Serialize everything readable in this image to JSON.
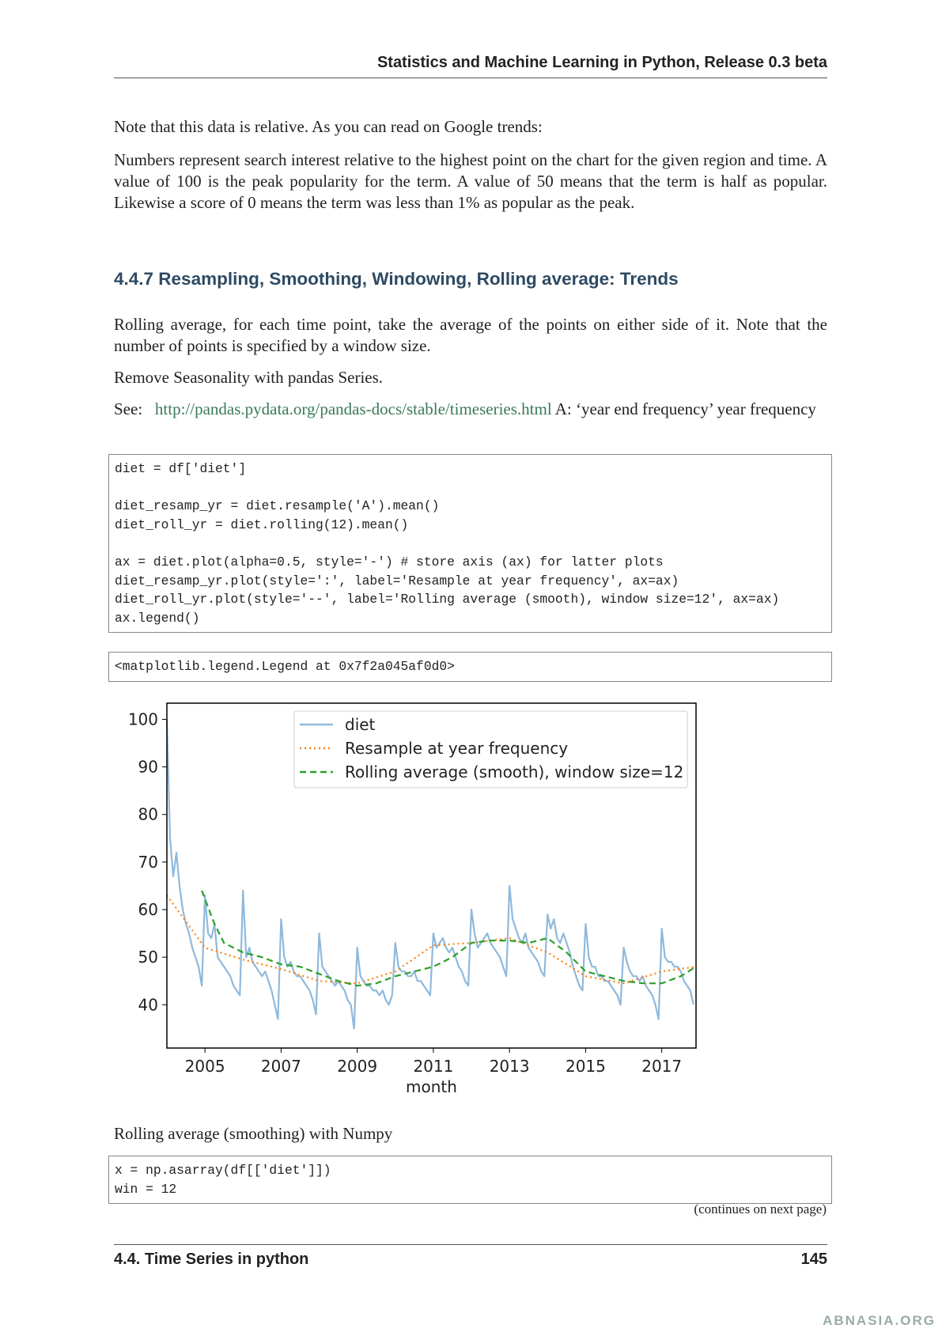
{
  "header": {
    "title": "Statistics and Machine Learning in Python, Release 0.3 beta"
  },
  "body": {
    "p1": "Note that this data is relative. As you can read on Google trends:",
    "quote": "Numbers represent search interest relative to the highest point on the chart for the given region and time. A value of 100 is the peak popularity for the term. A value of 50 means that the term is half as popular. Likewise a score of 0 means the term was less than 1% as popular as the peak.",
    "heading": "4.4.7  Resampling, Smoothing, Windowing, Rolling average: Trends",
    "p2": "Rolling average, for each time point, take the average of the points on either side of it. Note that the number of points is specified by a window size.",
    "p3": "Remove Seasonality with pandas Series.",
    "p4": {
      "before": "See:",
      "link": "http://pandas.pydata.org/pandas-docs/stable/timeseries.html",
      "after": "A: ‘year end frequency’ year frequency"
    },
    "code1": [
      [
        "diet = df['diet']"
      ],
      [
        "diet_resamp_yr = diet.resample('A').mean()",
        "diet_roll_yr = diet.rolling(12).mean()"
      ],
      [
        "ax = diet.plot(alpha=0.5, style='-') # store axis (ax) for latter plots",
        "diet_resamp_yr.plot(style=':', label='Resample at year frequency', ax=ax)",
        "diet_roll_yr.plot(style='--', label='Rolling average (smooth), window size=12', ax=ax)",
        "ax.legend()"
      ]
    ],
    "output": "<matplotlib.legend.Legend at 0x7f2a045af0d0>",
    "caption": "Rolling average (smoothing) with Numpy",
    "code2": [
      "x = np.asarray(df[['diet']])",
      "win = 12"
    ],
    "continues": "(continues on next page)"
  },
  "chart_data": {
    "type": "line",
    "xlabel": "month",
    "xlim": [
      2004.0,
      2017.9
    ],
    "xticks": [
      2005,
      2007,
      2009,
      2011,
      2013,
      2015,
      2017
    ],
    "ylim": [
      30.9,
      103.4
    ],
    "yticks": [
      40,
      50,
      60,
      70,
      80,
      90,
      100
    ],
    "legend": "upper right",
    "series": [
      {
        "name": "diet",
        "color": "#8fb9dc",
        "style": "solid",
        "x": [
          2004,
          2004.083,
          2004.167,
          2004.25,
          2004.333,
          2004.417,
          2004.5,
          2004.583,
          2004.667,
          2004.75,
          2004.833,
          2004.917,
          2005,
          2005.083,
          2005.167,
          2005.25,
          2005.333,
          2005.417,
          2005.5,
          2005.583,
          2005.667,
          2005.75,
          2005.833,
          2005.917,
          2006,
          2006.083,
          2006.167,
          2006.25,
          2006.333,
          2006.417,
          2006.5,
          2006.583,
          2006.667,
          2006.75,
          2006.833,
          2006.917,
          2007,
          2007.083,
          2007.167,
          2007.25,
          2007.333,
          2007.417,
          2007.5,
          2007.583,
          2007.667,
          2007.75,
          2007.833,
          2007.917,
          2008,
          2008.083,
          2008.167,
          2008.25,
          2008.333,
          2008.417,
          2008.5,
          2008.583,
          2008.667,
          2008.75,
          2008.833,
          2008.917,
          2009,
          2009.083,
          2009.167,
          2009.25,
          2009.333,
          2009.417,
          2009.5,
          2009.583,
          2009.667,
          2009.75,
          2009.833,
          2009.917,
          2010,
          2010.083,
          2010.167,
          2010.25,
          2010.333,
          2010.417,
          2010.5,
          2010.583,
          2010.667,
          2010.75,
          2010.833,
          2010.917,
          2011,
          2011.083,
          2011.167,
          2011.25,
          2011.333,
          2011.417,
          2011.5,
          2011.583,
          2011.667,
          2011.75,
          2011.833,
          2011.917,
          2012,
          2012.083,
          2012.167,
          2012.25,
          2012.333,
          2012.417,
          2012.5,
          2012.583,
          2012.667,
          2012.75,
          2012.833,
          2012.917,
          2013,
          2013.083,
          2013.167,
          2013.25,
          2013.333,
          2013.417,
          2013.5,
          2013.583,
          2013.667,
          2013.75,
          2013.833,
          2013.917,
          2014,
          2014.083,
          2014.167,
          2014.25,
          2014.333,
          2014.417,
          2014.5,
          2014.583,
          2014.667,
          2014.75,
          2014.833,
          2014.917,
          2015,
          2015.083,
          2015.167,
          2015.25,
          2015.333,
          2015.417,
          2015.5,
          2015.583,
          2015.667,
          2015.75,
          2015.833,
          2015.917,
          2016,
          2016.083,
          2016.167,
          2016.25,
          2016.333,
          2016.417,
          2016.5,
          2016.583,
          2016.667,
          2016.75,
          2016.833,
          2016.917,
          2017,
          2017.083,
          2017.167,
          2017.25,
          2017.333,
          2017.417,
          2017.5,
          2017.583,
          2017.667,
          2017.75,
          2017.833
        ],
        "values": [
          100,
          75,
          67,
          72,
          65,
          60,
          57,
          55,
          52,
          50,
          48,
          44,
          63,
          55,
          54,
          57,
          50,
          49,
          48,
          47,
          46,
          44,
          43,
          42,
          64,
          50,
          52,
          49,
          48,
          47,
          46,
          47,
          45,
          43,
          40,
          37,
          58,
          50,
          48,
          49,
          47,
          46,
          46,
          45,
          44,
          43,
          41,
          38,
          55,
          48,
          47,
          46,
          45,
          44,
          45,
          44,
          43,
          41,
          40,
          35,
          52,
          46,
          45,
          44,
          44,
          43,
          43,
          42,
          43,
          41,
          40,
          42,
          53,
          48,
          47,
          47,
          46,
          46,
          47,
          45,
          45,
          44,
          43,
          42,
          55,
          52,
          53,
          54,
          52,
          51,
          52,
          50,
          48,
          47,
          45,
          44,
          60,
          55,
          52,
          53,
          54,
          55,
          53,
          52,
          51,
          50,
          48,
          46,
          65,
          58,
          56,
          54,
          53,
          55,
          52,
          51,
          50,
          49,
          47,
          46,
          59,
          56,
          58,
          54,
          53,
          55,
          53,
          51,
          48,
          46,
          44,
          43,
          57,
          50,
          48,
          48,
          46,
          46,
          45,
          45,
          44,
          43,
          42,
          40,
          52,
          49,
          47,
          46,
          46,
          45,
          46,
          44,
          43,
          42,
          40,
          37,
          56,
          50,
          49,
          49,
          48,
          48,
          47,
          45,
          44,
          43,
          40
        ]
      },
      {
        "name": "Resample at year frequency",
        "color": "#ff7f0e",
        "style": "dotted",
        "x": [
          2004,
          2005,
          2006,
          2007,
          2008,
          2009,
          2010,
          2011,
          2012,
          2013,
          2014,
          2015,
          2016,
          2017,
          2017.9
        ],
        "values": [
          63,
          52,
          49.5,
          47.5,
          45,
          44.5,
          47,
          52.5,
          53,
          54,
          51,
          46,
          44.5,
          47,
          48
        ]
      },
      {
        "name": "Rolling average (smooth), window size=12",
        "color": "#2ca02c",
        "style": "dashed",
        "x": [
          2004.917,
          2005.25,
          2005.5,
          2006,
          2006.5,
          2007,
          2007.5,
          2008,
          2008.5,
          2009,
          2009.5,
          2010,
          2010.5,
          2011,
          2011.5,
          2012,
          2012.5,
          2013,
          2013.5,
          2014,
          2014.5,
          2015,
          2015.5,
          2016,
          2016.5,
          2017,
          2017.5,
          2017.9
        ],
        "values": [
          64,
          57,
          53,
          51,
          50,
          48.5,
          48,
          46.5,
          45,
          44,
          44.5,
          46,
          47,
          48,
          50,
          53,
          53.5,
          53.5,
          53,
          54,
          51,
          47,
          46,
          45,
          44.5,
          44.5,
          46,
          48
        ]
      }
    ]
  },
  "footer": {
    "section": "4.4.  Time Series in python",
    "page": "145"
  },
  "watermark": "ABNASIA.ORG"
}
